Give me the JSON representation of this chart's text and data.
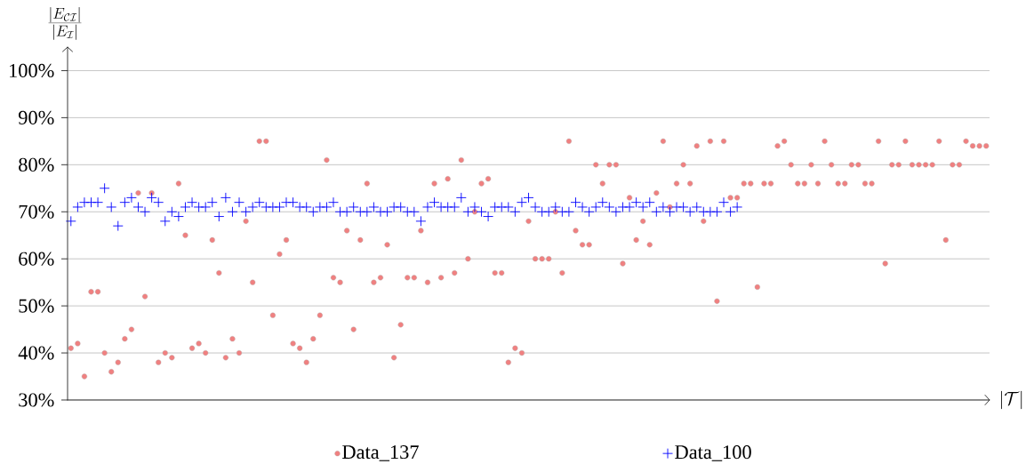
{
  "chart_data": {
    "type": "scatter",
    "xlabel": "|\\mathcal{T}|",
    "ylabel": "\\frac{|E_{\\mathcal{C}\\mathcal{I}}|}{|E_{\\mathcal{I}}|}",
    "categories": [
      null,
      null,
      null,
      null,
      null,
      null,
      null,
      null,
      null,
      null,
      null,
      null,
      null,
      null,
      null,
      null,
      null,
      null,
      null,
      null,
      null,
      null,
      null,
      null,
      null,
      null,
      null,
      null,
      null,
      null,
      null,
      null,
      null,
      null,
      null,
      null,
      null,
      null,
      null,
      null,
      null,
      null,
      null,
      null,
      null,
      null,
      null,
      null,
      null,
      null,
      null,
      null,
      null,
      null,
      null,
      null,
      null,
      null,
      null,
      null,
      null,
      null,
      null,
      null,
      null,
      null,
      null,
      null,
      null,
      null,
      null,
      null,
      null,
      null,
      null,
      null,
      null,
      null,
      null,
      null,
      null,
      null,
      null,
      null,
      null,
      null,
      null,
      null,
      null,
      null,
      null,
      null,
      null,
      null,
      null,
      null,
      null,
      null,
      null,
      null,
      null,
      null,
      null,
      null,
      null,
      null,
      null,
      null,
      null,
      null,
      null,
      null,
      null,
      null,
      null,
      null,
      null,
      null,
      null,
      null,
      null,
      null,
      null,
      null,
      null,
      null,
      null,
      null,
      null,
      null,
      null,
      null,
      null,
      null,
      null,
      null,
      null
    ],
    "series": [
      {
        "name": "Data_137",
        "color": "#f08080",
        "marker": "circle",
        "values": [
          41,
          42,
          35,
          53,
          53,
          40,
          36,
          38,
          43,
          45,
          74,
          52,
          74,
          38,
          40,
          39,
          76,
          65,
          41,
          42,
          40,
          64,
          57,
          39,
          43,
          40,
          68,
          55,
          85,
          85,
          48,
          61,
          64,
          42,
          41,
          38,
          43,
          48,
          81,
          56,
          55,
          66,
          45,
          64,
          76,
          55,
          56,
          63,
          39,
          46,
          56,
          56,
          66,
          55,
          76,
          56,
          77,
          57,
          81,
          60,
          70,
          76,
          77,
          57,
          57,
          38,
          41,
          40,
          68,
          60,
          60,
          60,
          70,
          57,
          85,
          66,
          63,
          63,
          80,
          76,
          80,
          80,
          59,
          73,
          64,
          68,
          63,
          74,
          85,
          71,
          76,
          80,
          76,
          84,
          68,
          85,
          51,
          85,
          73,
          73,
          76,
          76,
          54,
          76,
          76,
          84,
          85,
          80,
          76,
          76,
          80,
          76,
          85,
          80,
          76,
          76,
          80,
          80,
          76,
          76,
          85,
          59,
          80,
          80,
          85,
          80,
          80,
          80,
          80,
          85,
          64,
          80,
          80,
          85,
          84,
          84,
          84
        ]
      },
      {
        "name": "Data_100",
        "color": "#0000ff",
        "marker": "cross",
        "values": [
          68,
          71,
          72,
          72,
          72,
          75,
          71,
          67,
          72,
          73,
          71,
          70,
          73,
          72,
          68,
          70,
          69,
          71,
          72,
          71,
          71,
          72,
          69,
          73,
          70,
          72,
          70,
          71,
          72,
          71,
          71,
          71,
          72,
          72,
          71,
          71,
          70,
          71,
          71,
          72,
          70,
          70,
          71,
          70,
          70,
          71,
          70,
          70,
          71,
          71,
          70,
          70,
          68,
          71,
          72,
          71,
          71,
          71,
          73,
          70,
          71,
          70,
          69,
          71,
          71,
          71,
          70,
          72,
          73,
          71,
          70,
          70,
          71,
          70,
          70,
          72,
          71,
          70,
          71,
          72,
          71,
          70,
          71,
          71,
          72,
          71,
          72,
          70,
          71,
          70,
          71,
          71,
          70,
          71,
          70,
          70,
          70,
          72,
          70,
          71,
          null,
          null,
          null,
          null,
          null,
          null,
          null,
          null,
          null,
          null,
          null,
          null,
          null,
          null,
          null,
          null,
          null,
          null,
          null,
          null,
          null,
          null,
          null,
          null,
          null,
          null,
          null,
          null,
          null,
          null,
          null,
          null,
          null,
          null,
          null,
          null,
          null
        ]
      }
    ],
    "ylim": [
      30,
      105
    ],
    "yticks": [
      {
        "value": 30,
        "label": "30%"
      },
      {
        "value": 40,
        "label": "40%"
      },
      {
        "value": 50,
        "label": "50%"
      },
      {
        "value": 60,
        "label": "60%"
      },
      {
        "value": 70,
        "label": "70%"
      },
      {
        "value": 80,
        "label": "80%"
      },
      {
        "value": 90,
        "label": "90%"
      },
      {
        "value": 100,
        "label": "100%"
      }
    ],
    "grid": "y",
    "legend": "bottom"
  }
}
